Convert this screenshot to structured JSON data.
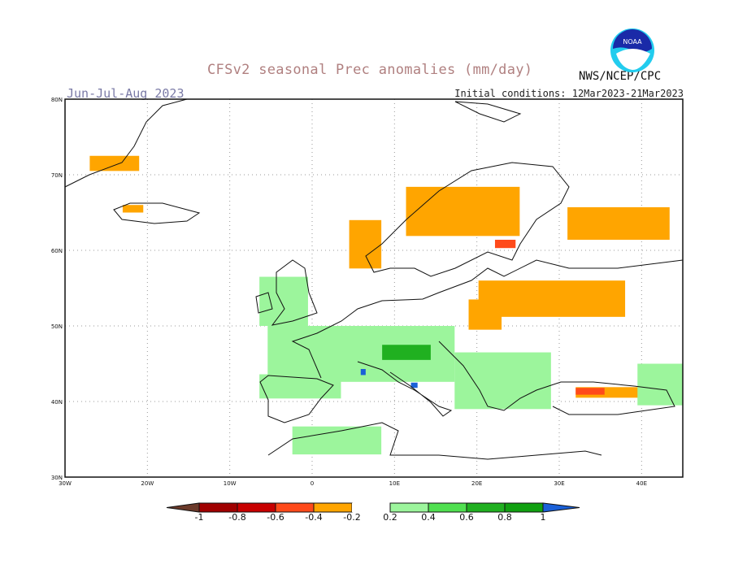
{
  "title": "CFSv2 seasonal Prec anomalies (mm/day)",
  "season": "Jun-Jul-Aug 2023",
  "initial_conditions": "Initial conditions: 12Mar2023-21Mar2023",
  "agency": "NWS/NCEP/CPC",
  "logo": "NOAA",
  "map": {
    "lon_range": [
      -30,
      45
    ],
    "lat_range": [
      30,
      80
    ],
    "lat_ticks": [
      {
        "v": 80,
        "t": "80N"
      },
      {
        "v": 70,
        "t": "70N"
      },
      {
        "v": 60,
        "t": "60N"
      },
      {
        "v": 50,
        "t": "50N"
      },
      {
        "v": 40,
        "t": "40N"
      },
      {
        "v": 30,
        "t": "30N"
      }
    ],
    "lon_ticks": [
      {
        "v": -30,
        "t": "30W"
      },
      {
        "v": -20,
        "t": "20W"
      },
      {
        "v": -10,
        "t": "10W"
      },
      {
        "v": 0,
        "t": "0"
      },
      {
        "v": 10,
        "t": "10E"
      },
      {
        "v": 20,
        "t": "20E"
      },
      {
        "v": 30,
        "t": "30E"
      },
      {
        "v": 40,
        "t": "40E"
      }
    ],
    "anomalies": [
      {
        "region": "Scandinavia",
        "lon": [
          11.4,
          25.2
        ],
        "lat": [
          61.9,
          68.4
        ],
        "value": -0.3
      },
      {
        "region": "Norway coast",
        "lon": [
          4.5,
          8.4
        ],
        "lat": [
          57.6,
          64
        ],
        "value": -0.3
      },
      {
        "region": "NW Russia",
        "lon": [
          31,
          43.4
        ],
        "lat": [
          61.4,
          65.7
        ],
        "value": -0.3
      },
      {
        "region": "Baltic/W Russia",
        "lon": [
          20.2,
          38
        ],
        "lat": [
          51.2,
          56
        ],
        "value": -0.3
      },
      {
        "region": "Finland south",
        "lon": [
          22.2,
          24.7
        ],
        "lat": [
          60.3,
          61.4
        ],
        "value": -0.5
      },
      {
        "region": "Poland",
        "lon": [
          19,
          23
        ],
        "lat": [
          49.5,
          53.5
        ],
        "value": -0.3
      },
      {
        "region": "Greenland/Jan Mayen",
        "lon": [
          -27,
          -21
        ],
        "lat": [
          70.5,
          72.5
        ],
        "value": -0.3
      },
      {
        "region": "Iceland",
        "lon": [
          -23,
          -20.5
        ],
        "lat": [
          65,
          66
        ],
        "value": -0.3
      },
      {
        "region": "Turkey",
        "lon": [
          32,
          41.5
        ],
        "lat": [
          40.5,
          41.9
        ],
        "value": -0.3
      },
      {
        "region": "Turkey north",
        "lon": [
          32,
          35.5
        ],
        "lat": [
          40.9,
          41.8
        ],
        "value": -0.5
      },
      {
        "region": "France/Alps",
        "lon": [
          -5.4,
          17.3
        ],
        "lat": [
          42.6,
          50
        ],
        "value": 0.3
      },
      {
        "region": "Alps core",
        "lon": [
          8.5,
          14.4
        ],
        "lat": [
          45.5,
          47.5
        ],
        "value": 0.7
      },
      {
        "region": "Iberia north",
        "lon": [
          -6.4,
          3.5
        ],
        "lat": [
          40.4,
          43.6
        ],
        "value": 0.3
      },
      {
        "region": "Balkans",
        "lon": [
          17.3,
          29
        ],
        "lat": [
          39,
          46.5
        ],
        "value": 0.3
      },
      {
        "region": "UK",
        "lon": [
          -6.4,
          -0.5
        ],
        "lat": [
          50,
          56.5
        ],
        "value": 0.3
      },
      {
        "region": "N Africa",
        "lon": [
          -2.4,
          8.4
        ],
        "lat": [
          33,
          36.7
        ],
        "value": 0.3
      },
      {
        "region": "Caucasus",
        "lon": [
          39.5,
          45
        ],
        "lat": [
          39.5,
          45
        ],
        "value": 0.3
      },
      {
        "region": "Liguria",
        "lon": [
          5.9,
          6.5
        ],
        "lat": [
          43.5,
          44.3
        ],
        "value": 1.1
      },
      {
        "region": "Central Italy",
        "lon": [
          12,
          12.8
        ],
        "lat": [
          41.8,
          42.5
        ],
        "value": 1.1
      }
    ]
  },
  "colorbar": {
    "labels": [
      "-1",
      "-0.8",
      "-0.6",
      "-0.4",
      "-0.2",
      "0.2",
      "0.4",
      "0.6",
      "0.8",
      "1"
    ],
    "colors": {
      "below_-1": "#6b3a2a",
      "-1_-0.8": "#a00000",
      "-0.8_-0.6": "#c80000",
      "-0.6_-0.4": "#ff4a1a",
      "-0.4_-0.2": "#ffa500",
      "-0.2_0.2": "#ffffff",
      "0.2_0.4": "#9cf59c",
      "0.4_0.6": "#50e050",
      "0.6_0.8": "#20b020",
      "0.8_1": "#10a010",
      "above_1": "#1a60d8"
    }
  }
}
